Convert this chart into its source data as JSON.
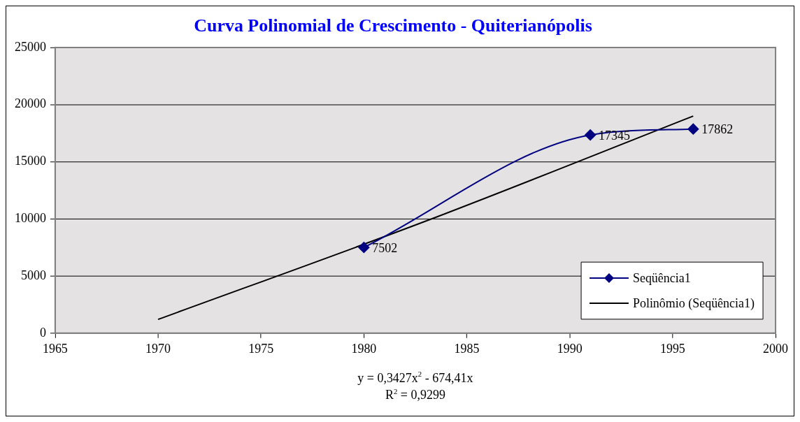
{
  "chart_data": {
    "type": "line",
    "title": "Curva Polinomial de Crescimento - Quiterianópolis",
    "x": [
      1980,
      1991,
      1996
    ],
    "series": [
      {
        "name": "Seqüência1",
        "color": "#000080",
        "values": [
          7502,
          17345,
          17862
        ],
        "value_labels": [
          "7502",
          "17345",
          "17862"
        ],
        "marker": "diamond"
      },
      {
        "name": "Polinômio (Seqüência1)",
        "color": "#000000",
        "x": [
          1970,
          1983,
          1996
        ],
        "values": [
          1200,
          9800,
          19000
        ],
        "marker": "none"
      }
    ],
    "xlim": [
      1965,
      2000
    ],
    "xticks": [
      1965,
      1970,
      1975,
      1980,
      1985,
      1990,
      1995,
      2000
    ],
    "ylim": [
      0,
      25000
    ],
    "yticks": [
      0,
      5000,
      10000,
      15000,
      20000,
      25000
    ],
    "grid": "y",
    "legend": "bottom right",
    "annotations": [
      "y = 0,3427x$^{2}$ - 674,41x",
      "R$^{2}$ = 0,9299"
    ]
  }
}
